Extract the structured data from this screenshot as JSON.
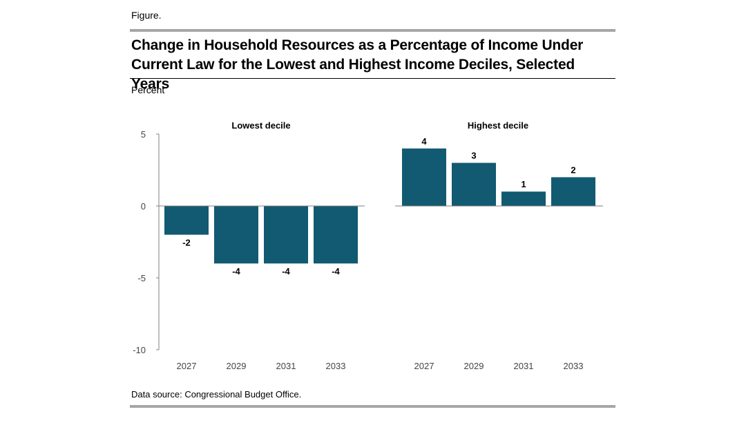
{
  "figure_label": "Figure.",
  "title": "Change in Household Resources as a Percentage of Income Under Current Law for the Lowest and Highest Income Deciles, Selected Years",
  "unit_label": "Percent",
  "source": "Data source: Congressional Budget Office.",
  "colors": {
    "bar": "#125a72",
    "axis": "#7f7f7f",
    "rule": "#a6a6a6"
  },
  "chart_data": [
    {
      "type": "bar",
      "title": "Lowest decile",
      "categories": [
        "2027",
        "2029",
        "2031",
        "2033"
      ],
      "values": [
        -2,
        -4,
        -4,
        -4
      ],
      "data_labels": [
        "-2",
        "-4",
        "-4",
        "-4"
      ],
      "ylabel": "Percent",
      "ylim": [
        -10,
        5
      ],
      "yticks": [
        5,
        0,
        -5,
        -10
      ],
      "ytick_labels": [
        "5",
        "0",
        "-5",
        "-10"
      ],
      "grid": false
    },
    {
      "type": "bar",
      "title": "Highest decile",
      "categories": [
        "2027",
        "2029",
        "2031",
        "2033"
      ],
      "values": [
        4,
        3,
        1,
        2
      ],
      "data_labels": [
        "4",
        "3",
        "1",
        "2"
      ],
      "ylabel": "Percent",
      "ylim": [
        -10,
        5
      ],
      "grid": false
    }
  ]
}
